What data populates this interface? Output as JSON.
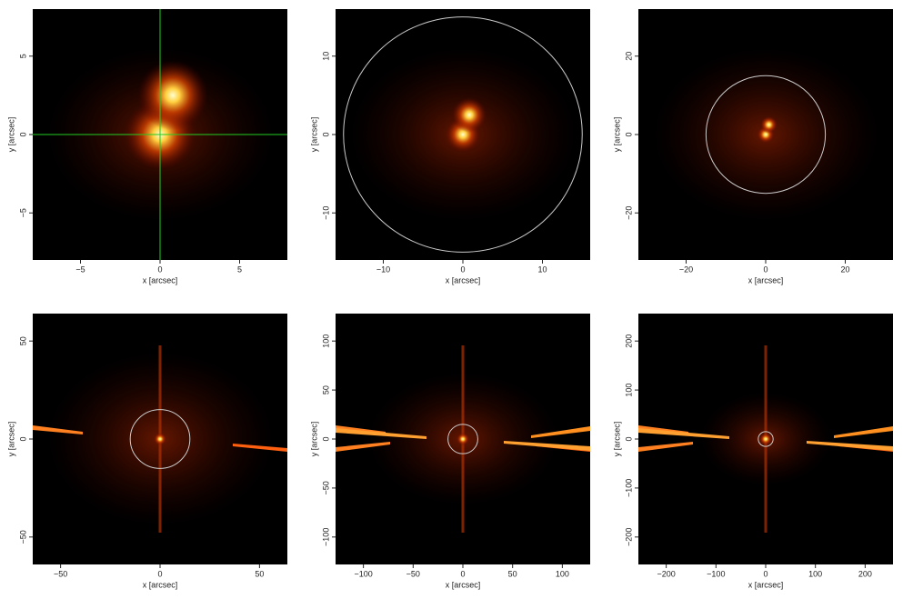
{
  "chart_data": [
    {
      "type": "image",
      "xlabel": "x [arcsec]",
      "ylabel": "y [arcsec]",
      "xlim": [
        -8,
        8
      ],
      "ylim": [
        -8,
        8
      ],
      "xticks": [
        {
          "value": -5,
          "label": "−5"
        },
        0,
        5
      ],
      "yticks": [
        {
          "value": -5,
          "label": "−5"
        },
        0,
        5
      ],
      "sources": [
        {
          "x": 0,
          "y": 0
        },
        {
          "x": 0.8,
          "y": 2.5
        }
      ],
      "crosshair": {
        "x": 0,
        "y": 0,
        "color": "#22cc22"
      }
    },
    {
      "type": "image",
      "xlabel": "x [arcsec]",
      "ylabel": "y [arcsec]",
      "xlim": [
        -16,
        16
      ],
      "ylim": [
        -16,
        16
      ],
      "xticks": [
        {
          "value": -10,
          "label": "−10"
        },
        0,
        10
      ],
      "yticks": [
        {
          "value": -10,
          "label": "−10"
        },
        0,
        10
      ],
      "sources": [
        {
          "x": 0,
          "y": 0
        },
        {
          "x": 0.8,
          "y": 2.5
        }
      ],
      "circle": {
        "x": 0,
        "y": 0,
        "r": 15,
        "color": "#cccccc"
      }
    },
    {
      "type": "image",
      "xlabel": "x [arcsec]",
      "ylabel": "y [arcsec]",
      "xlim": [
        -32,
        32
      ],
      "ylim": [
        -32,
        32
      ],
      "xticks": [
        {
          "value": -20,
          "label": "−20"
        },
        0,
        20
      ],
      "yticks": [
        {
          "value": -20,
          "label": "−20"
        },
        0,
        20
      ],
      "sources": [
        {
          "x": 0,
          "y": 0
        },
        {
          "x": 0.8,
          "y": 2.5
        }
      ],
      "circle": {
        "x": 0,
        "y": 0,
        "r": 15,
        "color": "#cccccc"
      }
    },
    {
      "type": "image",
      "xlabel": "x [arcsec]",
      "ylabel": "y [arcsec]",
      "xlim": [
        -64,
        64
      ],
      "ylim": [
        -64,
        64
      ],
      "xticks": [
        {
          "value": -50,
          "label": "−50"
        },
        0,
        50
      ],
      "yticks": [
        {
          "value": -50,
          "label": "−50"
        },
        0,
        50
      ],
      "sources": [
        {
          "x": 0,
          "y": 0
        }
      ],
      "circle": {
        "x": 0,
        "y": 0,
        "r": 15,
        "color": "#cccccc"
      }
    },
    {
      "type": "image",
      "xlabel": "x [arcsec]",
      "ylabel": "y [arcsec]",
      "xlim": [
        -128,
        128
      ],
      "ylim": [
        -128,
        128
      ],
      "xticks": [
        {
          "value": -100,
          "label": "−100"
        },
        {
          "value": -50,
          "label": "−50"
        },
        0,
        50,
        100
      ],
      "yticks": [
        {
          "value": -100,
          "label": "−100"
        },
        {
          "value": -50,
          "label": "−50"
        },
        0,
        50,
        100
      ],
      "sources": [
        {
          "x": 0,
          "y": 0
        }
      ],
      "circle": {
        "x": 0,
        "y": 0,
        "r": 15,
        "color": "#cccccc"
      }
    },
    {
      "type": "image",
      "xlabel": "x [arcsec]",
      "ylabel": "y [arcsec]",
      "xlim": [
        -256,
        256
      ],
      "ylim": [
        -256,
        256
      ],
      "xticks": [
        {
          "value": -200,
          "label": "−200"
        },
        {
          "value": -100,
          "label": "−100"
        },
        0,
        100,
        200
      ],
      "yticks": [
        {
          "value": -200,
          "label": "−200"
        },
        {
          "value": -100,
          "label": "−100"
        },
        0,
        100,
        200
      ],
      "sources": [
        {
          "x": 0,
          "y": 0
        }
      ],
      "circle": {
        "x": 0,
        "y": 0,
        "r": 15,
        "color": "#cccccc"
      }
    }
  ]
}
